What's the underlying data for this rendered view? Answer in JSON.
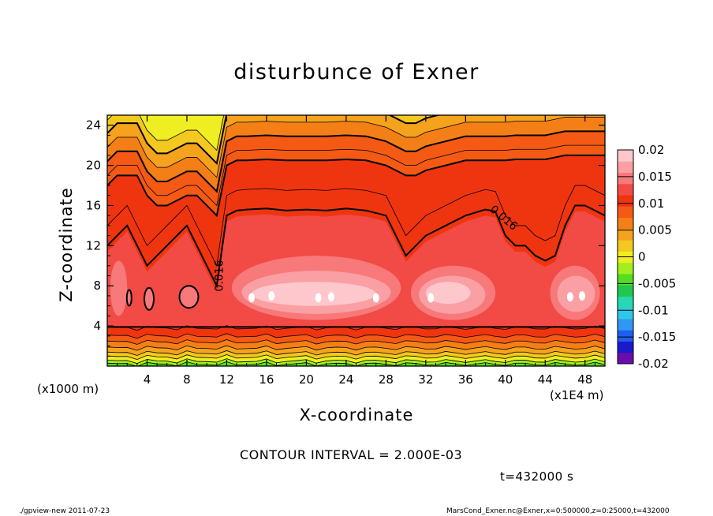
{
  "chart_data": {
    "type": "contour",
    "title": "disturbunce of Exner",
    "xlabel": "X-coordinate",
    "ylabel": "Z-coordinate",
    "x_unit_label": "(x1E4 m)",
    "z_unit_label": "(x1000 m)",
    "xlim": [
      0,
      50
    ],
    "ylim": [
      0,
      25
    ],
    "x_ticks": [
      4,
      8,
      12,
      16,
      20,
      24,
      28,
      32,
      36,
      40,
      44,
      48
    ],
    "y_ticks": [
      4,
      8,
      12,
      16,
      20,
      24
    ],
    "contour_interval_text": "CONTOUR INTERVAL = 2.000E-03",
    "contour_labels": [
      {
        "text": "0.016",
        "x": 11.6,
        "z": 9.0,
        "angle": -90
      },
      {
        "text": "0.016",
        "x": 39.6,
        "z": 14.5,
        "angle": 40
      }
    ],
    "colorbar": {
      "range": [
        -0.02,
        0.02
      ],
      "tick_labels": [
        "0.02",
        "0.015",
        "0.01",
        "0.005",
        "0",
        "-0.005",
        "-0.01",
        "-0.015",
        "-0.02"
      ],
      "colors": [
        "#6a0dad",
        "#1a1acc",
        "#1f5ff0",
        "#2f97f4",
        "#2fc7e8",
        "#27d9b0",
        "#20c84f",
        "#55dd22",
        "#a3ee1f",
        "#eeee22",
        "#f5c81f",
        "#f5a21c",
        "#f57f17",
        "#f45a14",
        "#ef3510",
        "#f24a45",
        "#f7797a",
        "#fa9fa3",
        "#fdc7cc"
      ]
    },
    "bands": [
      {
        "x": [
          0,
          1,
          2,
          3,
          4,
          5,
          6,
          7,
          8,
          9,
          10,
          11,
          12,
          13,
          14,
          16,
          18,
          20,
          22,
          24,
          26,
          28,
          29,
          30,
          31,
          32,
          34,
          36,
          38,
          39,
          40,
          41,
          42,
          43,
          44,
          45,
          46,
          47,
          48,
          49,
          50
        ],
        "hi": [
          12,
          13,
          14,
          12,
          10,
          11,
          12,
          13,
          14,
          12,
          10,
          8,
          15,
          15.5,
          15.6,
          15.7,
          15.5,
          15.6,
          15.5,
          15.7,
          15.5,
          15,
          13,
          11,
          12,
          13,
          14,
          15,
          15.6,
          15.4,
          13,
          12,
          12,
          11,
          10.5,
          11,
          14,
          16,
          16,
          15.5,
          15
        ],
        "level": 0.016
      },
      {
        "x": [
          0,
          1,
          2,
          3,
          4,
          5,
          6,
          7,
          8,
          9,
          10,
          11,
          12,
          13,
          14,
          16,
          18,
          20,
          22,
          24,
          26,
          28,
          29,
          30,
          31,
          32,
          34,
          36,
          38,
          39,
          40,
          41,
          42,
          43,
          44,
          45,
          46,
          47,
          48,
          49,
          50
        ],
        "hi": [
          18,
          19,
          19,
          19,
          17,
          16,
          16,
          16.5,
          17,
          17,
          16,
          15,
          20,
          20.5,
          20.5,
          20.6,
          20.5,
          20.5,
          20.5,
          20.6,
          20.5,
          20,
          19.5,
          19,
          19,
          19.5,
          20,
          20.5,
          20.5,
          20.5,
          20.5,
          20.6,
          20.6,
          20.6,
          20.6,
          20.8,
          21,
          21,
          21,
          21,
          21
        ],
        "level": 0.012
      }
    ],
    "time_text": "t=432000 s"
  },
  "footer": {
    "left": "./gpview-new   2011-07-23",
    "right": "MarsCond_Exner.nc@Exner,x=0:500000,z=0:25000,t=432000"
  }
}
